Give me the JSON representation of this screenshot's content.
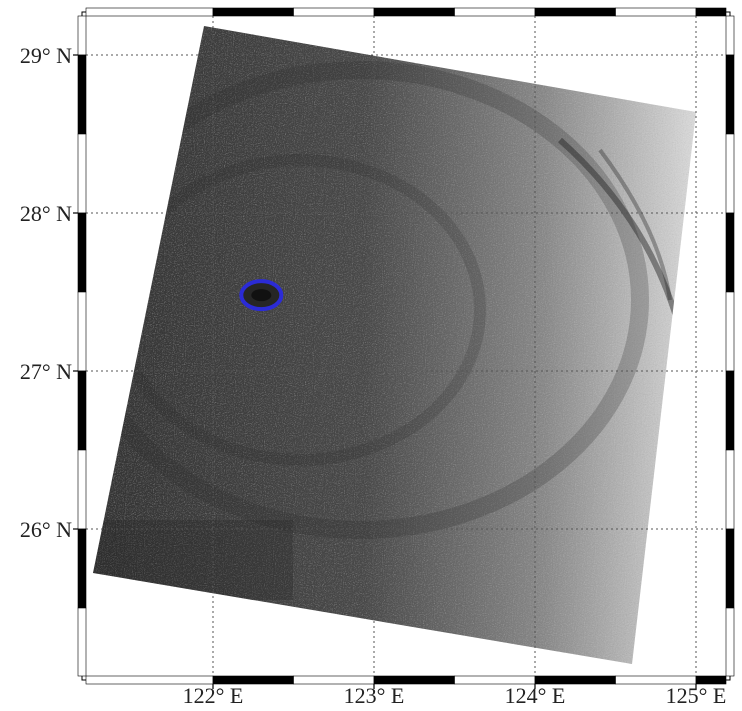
{
  "map": {
    "lat_labels": [
      "29° N",
      "28° N",
      "27° N",
      "26° N"
    ],
    "lon_labels": [
      "122° E",
      "123° E",
      "124° E",
      "125° E"
    ],
    "lat_values": [
      29,
      28,
      27,
      26
    ],
    "lon_values": [
      122,
      123,
      124,
      125
    ],
    "extent": {
      "lon_min": 121.2,
      "lon_max": 125.2,
      "lat_min": 25.1,
      "lat_max": 29.25
    },
    "gridlines": "dotted",
    "frame_style": "alternating black-white border",
    "image_type": "SAR grayscale swath",
    "colors": {
      "frame_black": "#000000",
      "frame_white": "#ffffff",
      "gridline": "#555555",
      "swath_dark": "#3a3a3a",
      "swath_light": "#d8d8d8",
      "eye_marker": "#2b2bd6"
    },
    "eye_marker": {
      "lon": 122.3,
      "lat": 27.48
    }
  }
}
